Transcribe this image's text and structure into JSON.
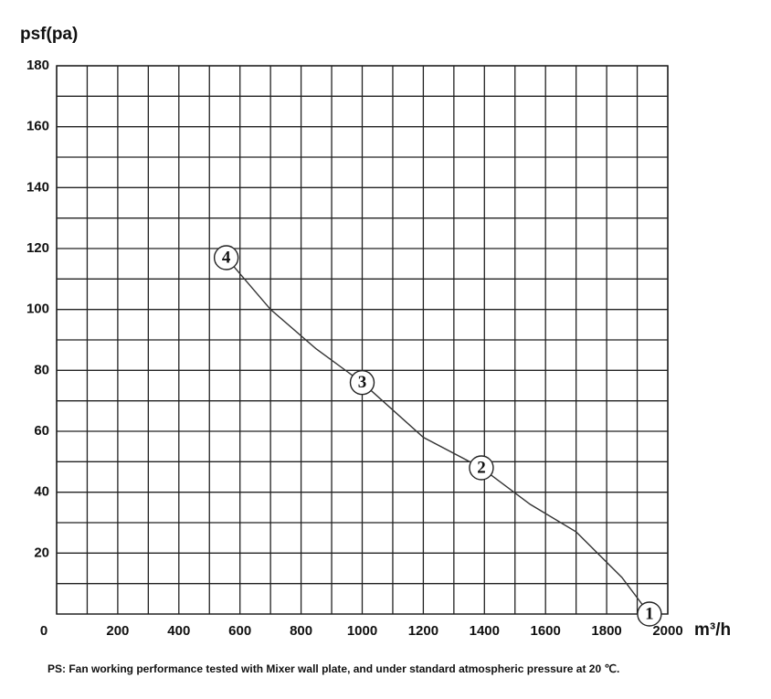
{
  "chart_data": {
    "type": "line",
    "y_label": "psf(pa)",
    "x_label": "m³/h",
    "note": "PS: Fan working performance tested with Mixer wall plate, and under standard atmospheric pressure at 20 ℃.",
    "x": [
      555,
      700,
      850,
      1000,
      1200,
      1390,
      1550,
      1700,
      1850,
      1940
    ],
    "series": [
      {
        "color": "#333333",
        "values": [
          117,
          100,
          87,
          76,
          58,
          48,
          36,
          27,
          12,
          0
        ]
      }
    ],
    "points": [
      {
        "label": "1",
        "x": 1940,
        "y": 0
      },
      {
        "label": "2",
        "x": 1390,
        "y": 48
      },
      {
        "label": "3",
        "x": 1000,
        "y": 76
      },
      {
        "label": "4",
        "x": 555,
        "y": 117
      }
    ],
    "xlim": [
      0,
      2000
    ],
    "ylim": [
      0,
      180
    ],
    "xticks": [
      0,
      200,
      400,
      600,
      800,
      1000,
      1200,
      1400,
      1600,
      1800,
      2000
    ],
    "yticks": [
      20,
      40,
      60,
      80,
      100,
      120,
      140,
      160,
      180
    ],
    "xminor": [
      100,
      300,
      500,
      700,
      900,
      1100,
      1300,
      1500,
      1700,
      1900
    ],
    "yminor": [
      10,
      30,
      50,
      70,
      90,
      110,
      130,
      150,
      170
    ],
    "grid": true
  }
}
